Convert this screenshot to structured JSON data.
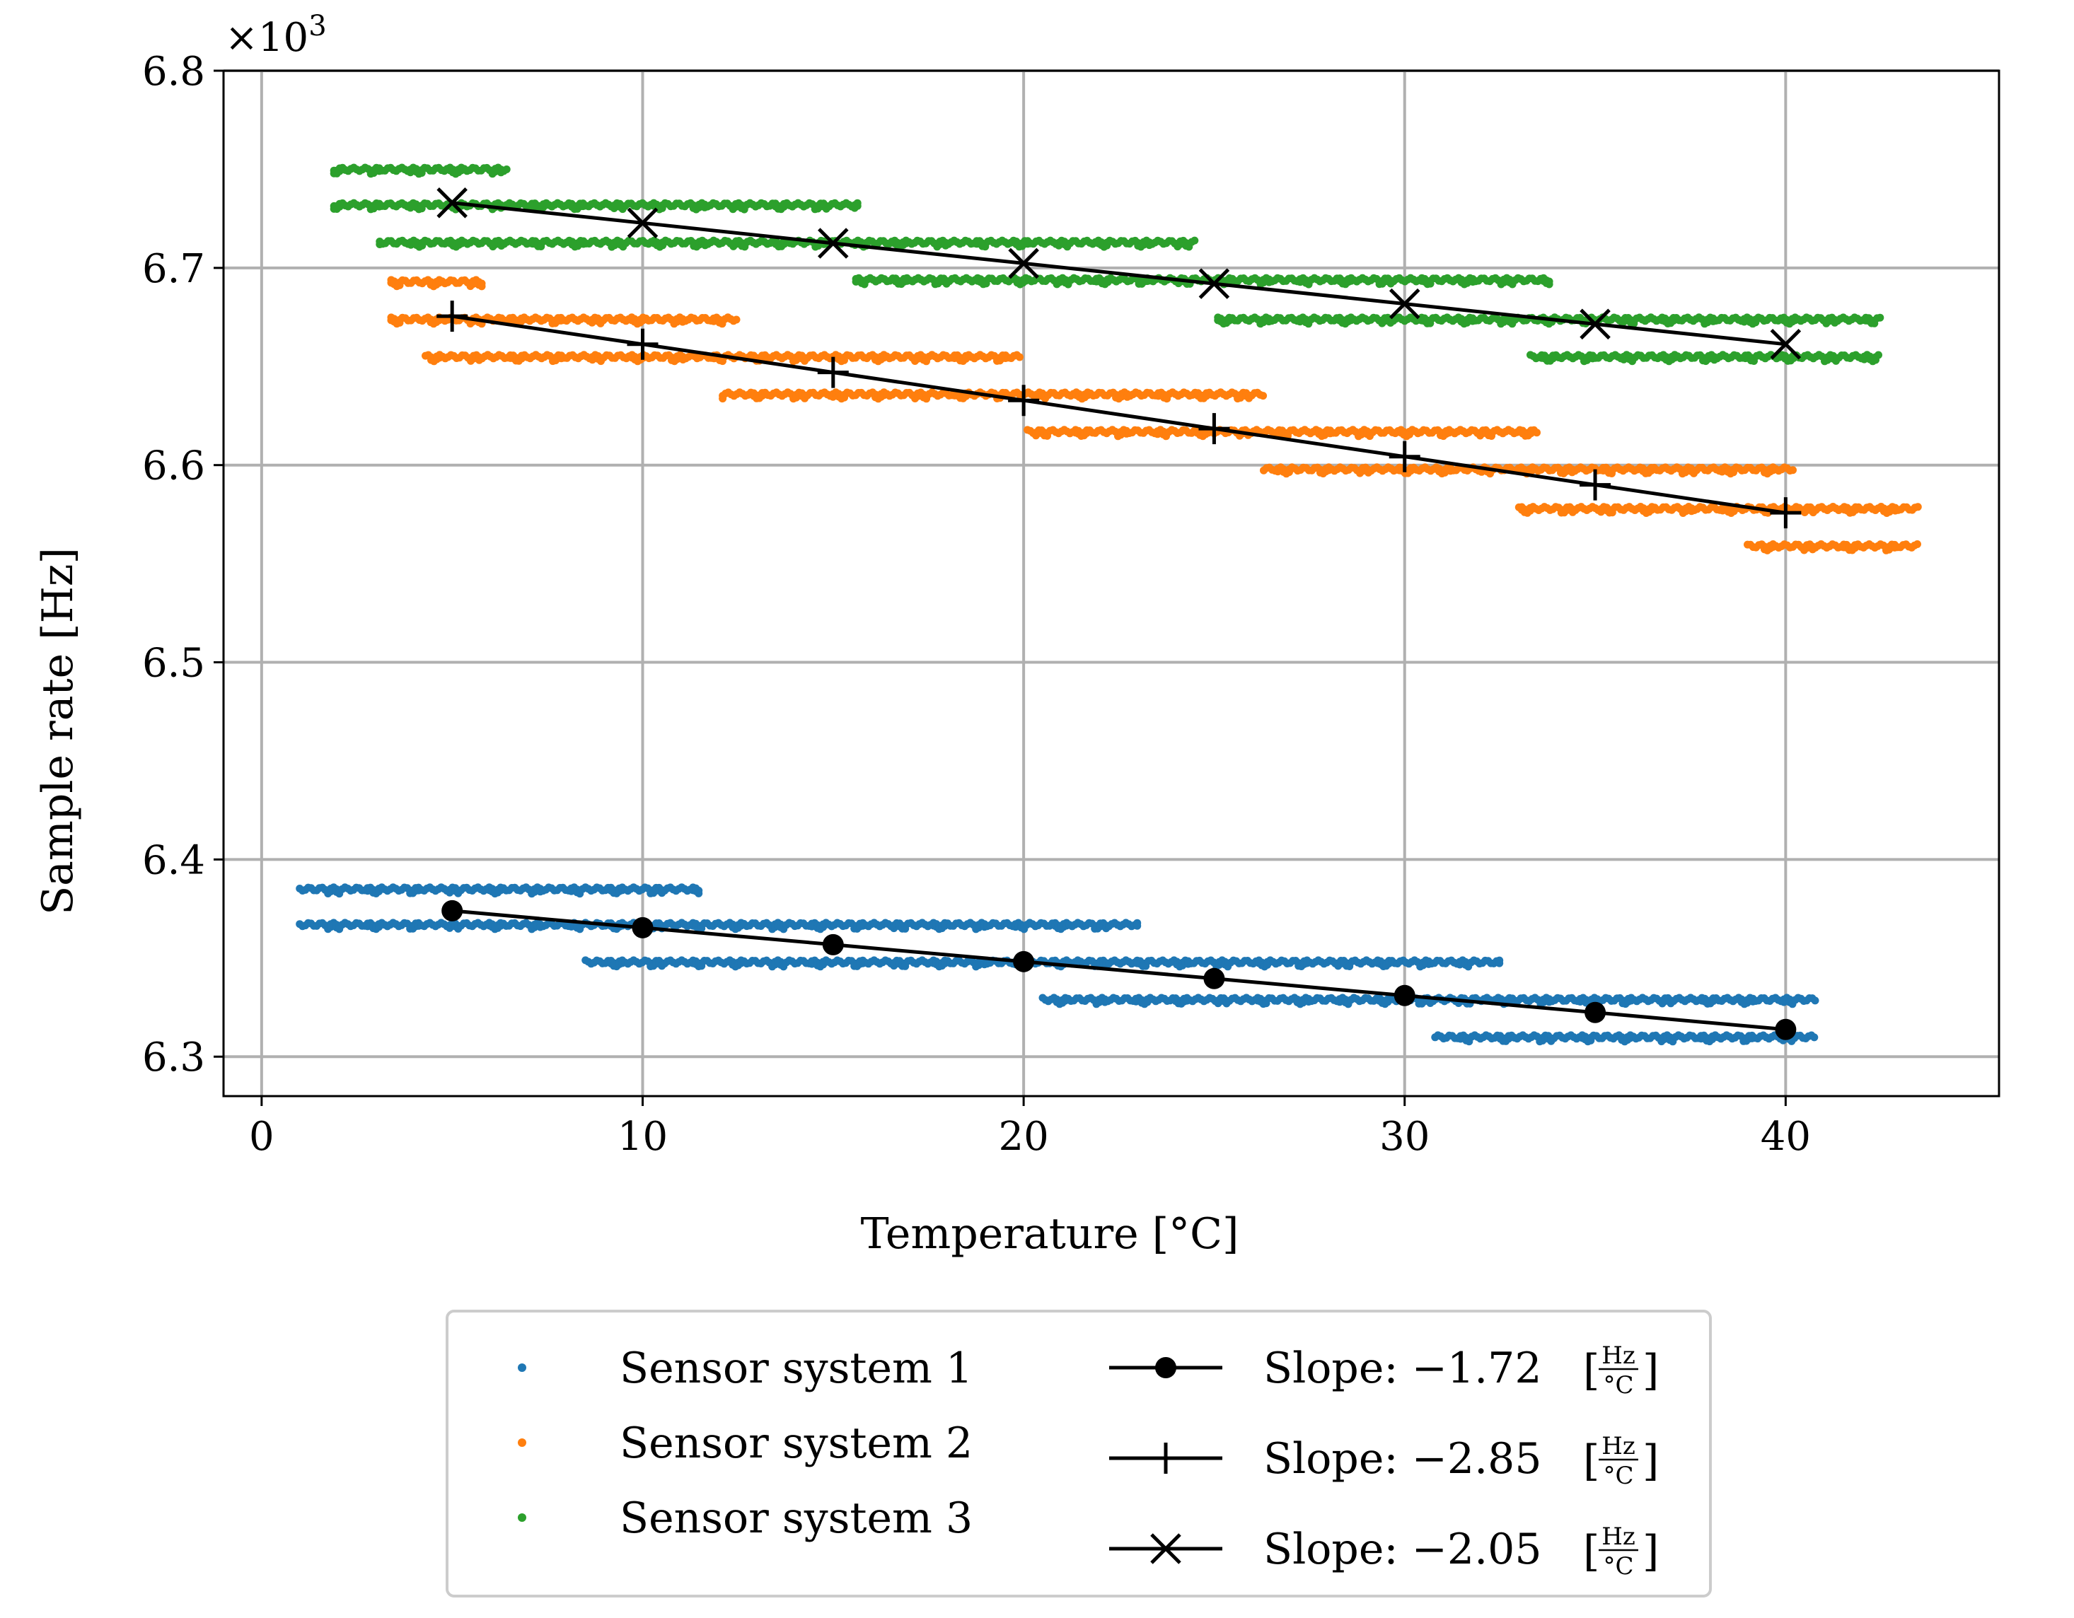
{
  "chart_data": {
    "type": "scatter",
    "title": "",
    "xlabel": "Temperature [°C]",
    "ylabel": "Sample rate [Hz]",
    "y_multiplier": "×10",
    "y_multiplier_exp": "3",
    "xlim": [
      -1,
      45.6
    ],
    "ylim": [
      6.28,
      6.8
    ],
    "x_ticks": [
      0,
      10,
      20,
      30,
      40
    ],
    "x_tick_labels": [
      "0",
      "10",
      "20",
      "30",
      "40"
    ],
    "y_ticks": [
      6.3,
      6.4,
      6.5,
      6.6,
      6.7,
      6.8
    ],
    "y_tick_labels": [
      "6.3",
      "6.4",
      "6.5",
      "6.6",
      "6.7",
      "6.8"
    ],
    "grid": true,
    "legend_position": "below",
    "colors": {
      "sensor1": "#1f77b4",
      "sensor2": "#ff7f0e",
      "sensor3": "#2ca02c",
      "fit": "#000000"
    },
    "scatter_series": [
      {
        "name": "Sensor system 1",
        "color": "#1f77b4",
        "bands": [
          {
            "y": 6.385,
            "x_start": 1.0,
            "x_end": 11.5
          },
          {
            "y": 6.367,
            "x_start": 1.0,
            "x_end": 23.0
          },
          {
            "y": 6.348,
            "x_start": 8.5,
            "x_end": 32.5
          },
          {
            "y": 6.329,
            "x_start": 20.5,
            "x_end": 40.8
          },
          {
            "y": 6.31,
            "x_start": 30.8,
            "x_end": 40.8
          }
        ]
      },
      {
        "name": "Sensor system 2",
        "color": "#ff7f0e",
        "bands": [
          {
            "y": 6.693,
            "x_start": 3.4,
            "x_end": 5.8
          },
          {
            "y": 6.674,
            "x_start": 3.4,
            "x_end": 12.5
          },
          {
            "y": 6.655,
            "x_start": 4.3,
            "x_end": 19.9
          },
          {
            "y": 6.636,
            "x_start": 12.1,
            "x_end": 26.3
          },
          {
            "y": 6.617,
            "x_start": 20.1,
            "x_end": 33.5
          },
          {
            "y": 6.598,
            "x_start": 26.3,
            "x_end": 40.2
          },
          {
            "y": 6.578,
            "x_start": 33.0,
            "x_end": 43.5
          },
          {
            "y": 6.559,
            "x_start": 39.0,
            "x_end": 43.5
          }
        ]
      },
      {
        "name": "Sensor system 3",
        "color": "#2ca02c",
        "bands": [
          {
            "y": 6.75,
            "x_start": 1.9,
            "x_end": 6.5
          },
          {
            "y": 6.732,
            "x_start": 1.9,
            "x_end": 15.7
          },
          {
            "y": 6.713,
            "x_start": 3.1,
            "x_end": 24.5
          },
          {
            "y": 6.694,
            "x_start": 15.6,
            "x_end": 33.8
          },
          {
            "y": 6.674,
            "x_start": 25.1,
            "x_end": 42.5
          },
          {
            "y": 6.655,
            "x_start": 33.3,
            "x_end": 42.5
          }
        ]
      }
    ],
    "fit_series": [
      {
        "name": "Slope: −1.72",
        "marker": "circle",
        "x": [
          5,
          10,
          15,
          20,
          25,
          30,
          35,
          40
        ],
        "y": [
          6.374,
          6.3654,
          6.3568,
          6.3482,
          6.3396,
          6.331,
          6.3224,
          6.3138
        ]
      },
      {
        "name": "Slope: −2.85",
        "marker": "plus",
        "x": [
          5,
          10,
          15,
          20,
          25,
          30,
          35,
          40
        ],
        "y": [
          6.6755,
          6.6613,
          6.647,
          6.6328,
          6.6185,
          6.6043,
          6.59,
          6.5758
        ]
      },
      {
        "name": "Slope: −2.05",
        "marker": "x",
        "x": [
          5,
          10,
          15,
          20,
          25,
          30,
          35,
          40
        ],
        "y": [
          6.733,
          6.7228,
          6.7125,
          6.7023,
          6.692,
          6.6818,
          6.6715,
          6.6613
        ]
      }
    ],
    "legend": {
      "scatter_labels": [
        "Sensor system 1",
        "Sensor system 2",
        "Sensor system 3"
      ],
      "fit_labels": [
        "Slope: −1.72",
        "Slope: −2.85",
        "Slope: −2.05"
      ],
      "unit_numerator": "Hz",
      "unit_denominator": "°C"
    }
  }
}
